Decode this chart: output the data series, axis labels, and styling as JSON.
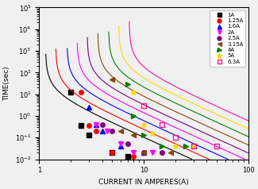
{
  "title": "",
  "xlabel": "CURRENT IN AMPERES(A)",
  "ylabel": "TIME(sec)",
  "xlim": [
    1,
    100
  ],
  "ylim": [
    0.01,
    100000
  ],
  "series": [
    {
      "label": "1A",
      "color": "black",
      "marker": "s",
      "filled": true,
      "rated": 1.0,
      "k": 8.0,
      "n": 4.5
    },
    {
      "label": "1.25A",
      "color": "red",
      "marker": "o",
      "filled": true,
      "rated": 1.25,
      "k": 8.0,
      "n": 4.5
    },
    {
      "label": "1.6A",
      "color": "blue",
      "marker": "^",
      "filled": true,
      "rated": 1.6,
      "k": 8.0,
      "n": 4.5
    },
    {
      "label": "2A",
      "color": "magenta",
      "marker": "v",
      "filled": true,
      "rated": 2.0,
      "k": 8.0,
      "n": 4.5
    },
    {
      "label": "2.5A",
      "color": "purple",
      "marker": "o",
      "filled": true,
      "rated": 2.5,
      "k": 8.0,
      "n": 4.5
    },
    {
      "label": "3.15A",
      "color": "#8B4513",
      "marker": "<",
      "filled": true,
      "rated": 3.15,
      "k": 8.0,
      "n": 4.5
    },
    {
      "label": "4A",
      "color": "green",
      "marker": ">",
      "filled": true,
      "rated": 4.0,
      "k": 8.0,
      "n": 4.5
    },
    {
      "label": "5A",
      "color": "#FFD700",
      "marker": "*",
      "filled": true,
      "rated": 5.0,
      "k": 8.0,
      "n": 4.5
    },
    {
      "label": "6.3A",
      "color": "deeppink",
      "marker": "s",
      "filled": false,
      "rated": 6.3,
      "k": 8.0,
      "n": 4.5
    }
  ],
  "background": "#f0f0f0"
}
